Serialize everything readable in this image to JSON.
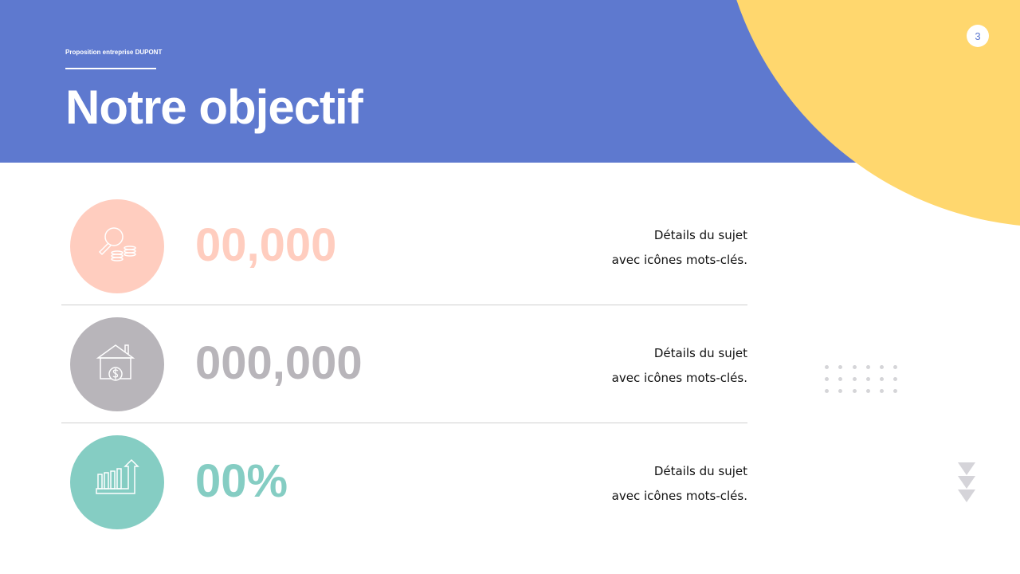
{
  "header": {
    "subtitle": "Proposition entreprise DUPONT",
    "title": "Notre objectif",
    "page_number": "3"
  },
  "colors": {
    "header": "#5e79cf",
    "accent_yellow": "#ffd76e",
    "row1": "#ffcdbf",
    "row2": "#b8b5ba",
    "row3": "#85cdc3"
  },
  "rows": [
    {
      "icon": "magnifier-coins-icon",
      "value": "00,000",
      "detail_line1": "Détails du sujet",
      "detail_line2": "avec icônes mots-clés."
    },
    {
      "icon": "house-dollar-icon",
      "value": "000,000",
      "detail_line1": "Détails du sujet",
      "detail_line2": "avec icônes mots-clés."
    },
    {
      "icon": "growth-chart-icon",
      "value": "00%",
      "detail_line1": "Détails du sujet",
      "detail_line2": "avec icônes mots-clés."
    }
  ]
}
